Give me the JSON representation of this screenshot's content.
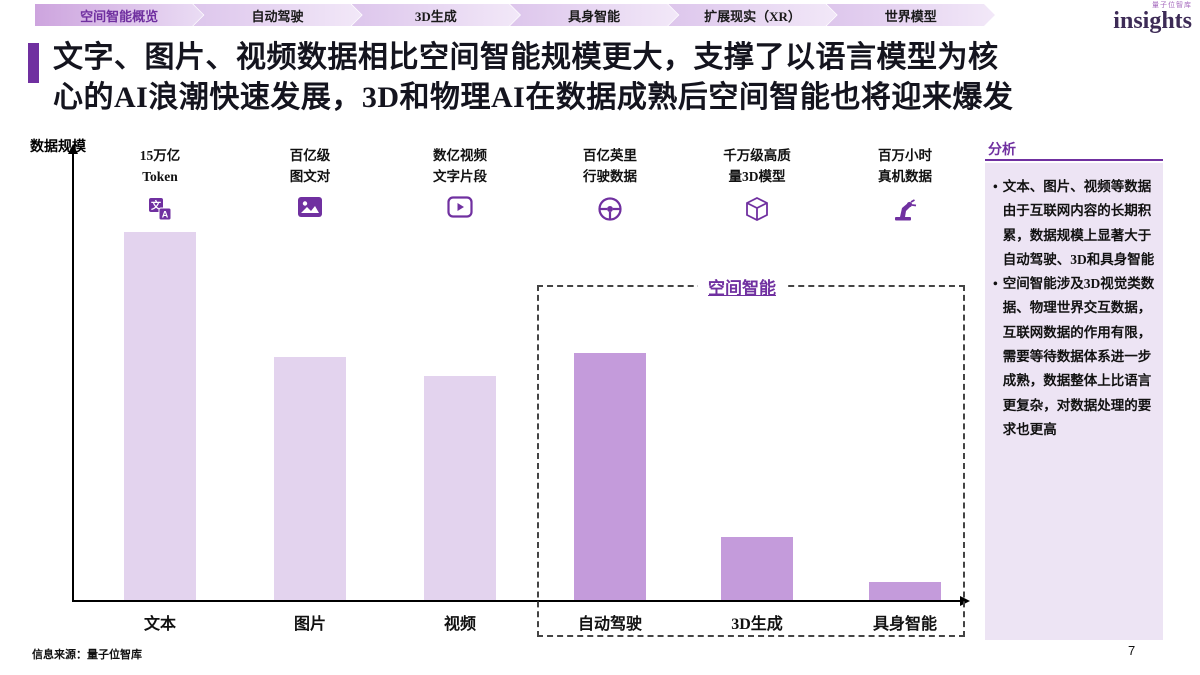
{
  "nav": {
    "items": [
      {
        "label": "空间智能概览",
        "active": true
      },
      {
        "label": "自动驾驶",
        "active": false
      },
      {
        "label": "3D生成",
        "active": false
      },
      {
        "label": "具身智能",
        "active": false
      },
      {
        "label": "扩展现实（XR）",
        "active": false
      },
      {
        "label": "世界模型",
        "active": false
      }
    ]
  },
  "logo": {
    "sub": "量子位智库",
    "main": "insights"
  },
  "title": {
    "line1": "文字、图片、视频数据相比空间智能规模更大，支撑了以语言模型为核",
    "line2": "心的AI浪潮快速发展，3D和物理AI在数据成熟后空间智能也将迎来爆发"
  },
  "chart_data": {
    "type": "bar",
    "ylabel": "数据规模",
    "categories": [
      "文本",
      "图片",
      "视频",
      "自动驾驶",
      "3D生成",
      "具身智能"
    ],
    "values": [
      100,
      66,
      61,
      67,
      17,
      5
    ],
    "value_note": "relative scale, no numeric y axis shown",
    "top_labels": [
      "15万亿\nToken",
      "百亿级\n图文对",
      "数亿视频\n文字片段",
      "百亿英里\n行驶数据",
      "千万级高质\n量3D模型",
      "百万小时\n真机数据"
    ],
    "icons": [
      "translate-icon",
      "image-icon",
      "video-icon",
      "steering-wheel-icon",
      "cube-3d-icon",
      "robot-arm-icon"
    ],
    "group_label": "空间智能",
    "group_categories": [
      "自动驾驶",
      "3D生成",
      "具身智能"
    ],
    "highlight_start_index": 3,
    "legend": "none",
    "grid": false
  },
  "colors": {
    "accent": "#7030A0",
    "bar_default": "#E3D3EE",
    "bar_highlight": "#C49BDB",
    "panel_bg": "#EDE4F4"
  },
  "analysis": {
    "header": "分析",
    "bullets": [
      "文本、图片、视频等数据由于互联网内容的长期积累，数据规模上显著大于自动驾驶、3D和具身智能",
      "空间智能涉及3D视觉类数据、物理世界交互数据，互联网数据的作用有限，需要等待数据体系进一步成熟，数据整体上比语言更复杂，对数据处理的要求也更高"
    ]
  },
  "footer": {
    "source": "信息来源：量子位智库",
    "page": "7"
  }
}
